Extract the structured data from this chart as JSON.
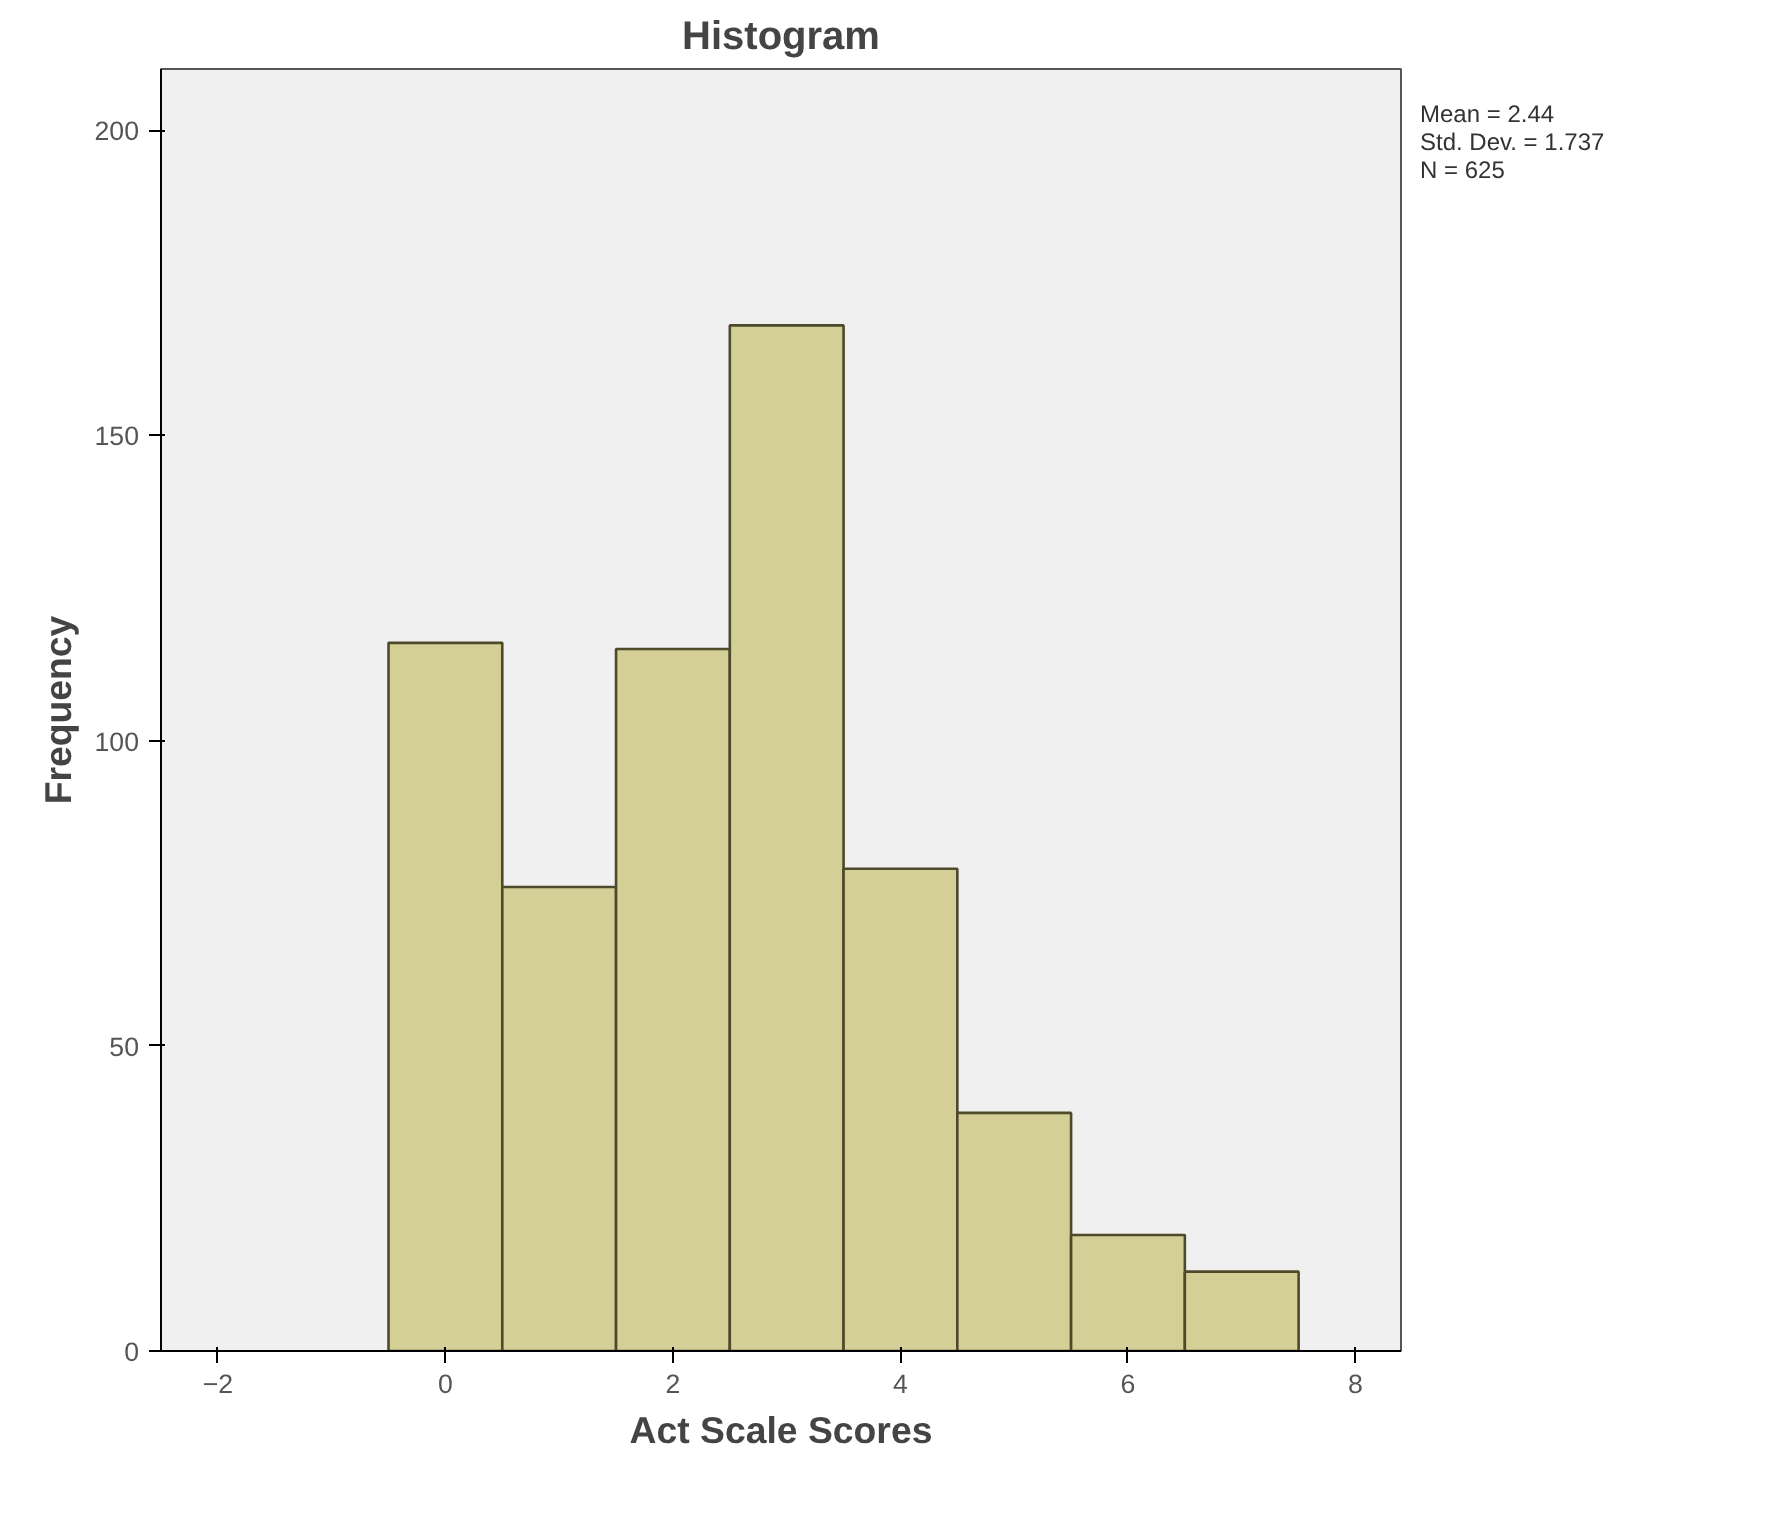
{
  "chart_data": {
    "type": "histogram",
    "title": "Histogram",
    "xlabel": "Act Scale Scores",
    "ylabel": "Frequency",
    "bins": [
      -0.5,
      0.5,
      1.5,
      2.5,
      3.5,
      4.5,
      5.5,
      6.5,
      7.5
    ],
    "values": [
      116,
      76,
      115,
      168,
      79,
      39,
      19,
      13
    ],
    "color": "#d3cf96",
    "xlim": [
      -2.5,
      8.4
    ],
    "xticks": [
      -2,
      0,
      2,
      4,
      6,
      8
    ],
    "ylim": [
      0,
      210
    ],
    "yticks": [
      0,
      50,
      100,
      150,
      200
    ],
    "grid": false,
    "annotations": [
      "Mean = 2.44",
      "Std. Dev. = 1.737",
      "N = 625"
    ]
  }
}
